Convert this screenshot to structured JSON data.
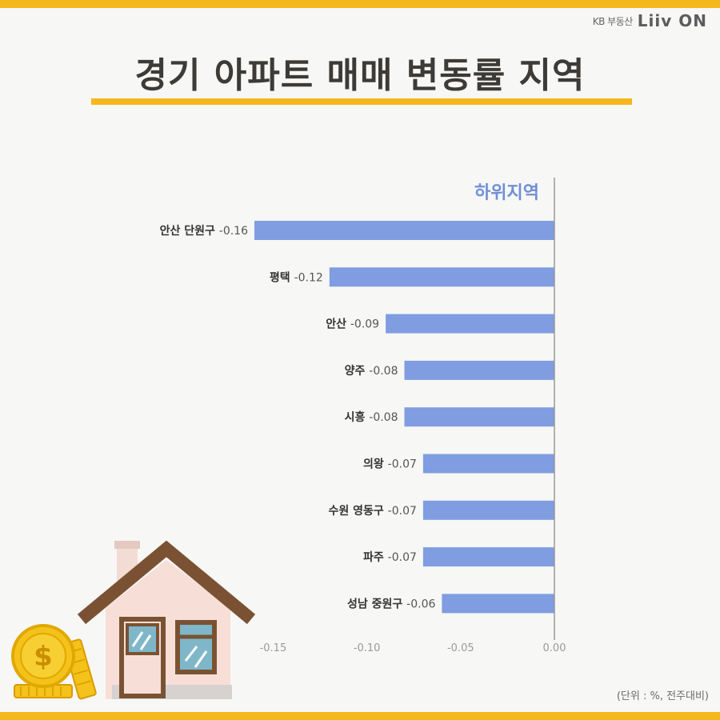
{
  "brand": {
    "kb_label": "KB 부동산",
    "logo_text": "Liiv ON"
  },
  "title": "경기 아파트 매매 변동률 지역",
  "unit_note": "(단위 : %, 전주대비)",
  "colors": {
    "accent": "#f5b81c",
    "bar": "#7f9de0",
    "heading": "#6f8fd6"
  },
  "chart_data": {
    "type": "bar",
    "orientation": "horizontal",
    "title": "하위지역",
    "categories": [
      "안산 단원구",
      "평택",
      "안산",
      "양주",
      "시흥",
      "의왕",
      "수원 영동구",
      "파주",
      "성남 중원구"
    ],
    "values": [
      -0.16,
      -0.12,
      -0.09,
      -0.08,
      -0.08,
      -0.07,
      -0.07,
      -0.07,
      -0.06
    ],
    "value_labels": [
      "-0.16",
      "-0.12",
      "-0.09",
      "-0.08",
      "-0.08",
      "-0.07",
      "-0.07",
      "-0.07",
      "-0.06"
    ],
    "xticks": [
      "-0.15",
      "-0.10",
      "-0.05",
      "0.00"
    ],
    "xtick_values": [
      -0.15,
      -0.1,
      -0.05,
      0.0
    ],
    "xlim": [
      -0.16,
      0.0
    ],
    "grid": false,
    "legend": "none"
  },
  "icons": [
    "house-illustration",
    "coin-stack-icon",
    "dollar-coin-icon"
  ]
}
